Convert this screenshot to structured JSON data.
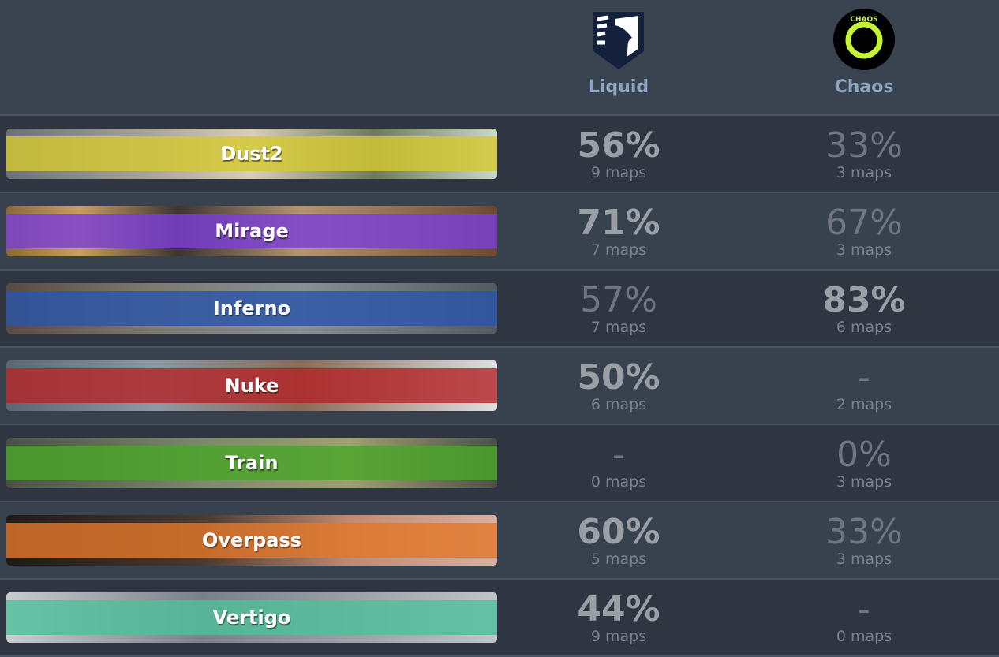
{
  "teams": [
    {
      "name": "Liquid",
      "logo": "liquid-horse-shield-logo"
    },
    {
      "name": "Chaos",
      "logo": "chaos-esports-club-logo",
      "logo_text": "CHAOS ESPORTS CLUB"
    }
  ],
  "colors": {
    "liquid_logo": "#14213d",
    "chaos_accent": "#c6f432"
  },
  "maps": [
    {
      "name": "Dust2",
      "color": "#d4c832",
      "liquid": {
        "pct": "56%",
        "maps": "9 maps",
        "best": true
      },
      "chaos": {
        "pct": "33%",
        "maps": "3 maps",
        "best": false
      }
    },
    {
      "name": "Mirage",
      "color": "#7b3fd6",
      "liquid": {
        "pct": "71%",
        "maps": "7 maps",
        "best": true
      },
      "chaos": {
        "pct": "67%",
        "maps": "3 maps",
        "best": false
      }
    },
    {
      "name": "Inferno",
      "color": "#2b56a8",
      "liquid": {
        "pct": "57%",
        "maps": "7 maps",
        "best": false
      },
      "chaos": {
        "pct": "83%",
        "maps": "6 maps",
        "best": true
      }
    },
    {
      "name": "Nuke",
      "color": "#b3262a",
      "liquid": {
        "pct": "50%",
        "maps": "6 maps",
        "best": true
      },
      "chaos": {
        "pct": "-",
        "maps": "2 maps",
        "best": false
      }
    },
    {
      "name": "Train",
      "color": "#4aa529",
      "liquid": {
        "pct": "-",
        "maps": "0 maps",
        "best": false
      },
      "chaos": {
        "pct": "0%",
        "maps": "3 maps",
        "best": false
      }
    },
    {
      "name": "Overpass",
      "color": "#e0782c",
      "liquid": {
        "pct": "60%",
        "maps": "5 maps",
        "best": true
      },
      "chaos": {
        "pct": "33%",
        "maps": "3 maps",
        "best": false
      }
    },
    {
      "name": "Vertigo",
      "color": "#4fbf9a",
      "liquid": {
        "pct": "44%",
        "maps": "9 maps",
        "best": true
      },
      "chaos": {
        "pct": "-",
        "maps": "0 maps",
        "best": false
      }
    }
  ]
}
